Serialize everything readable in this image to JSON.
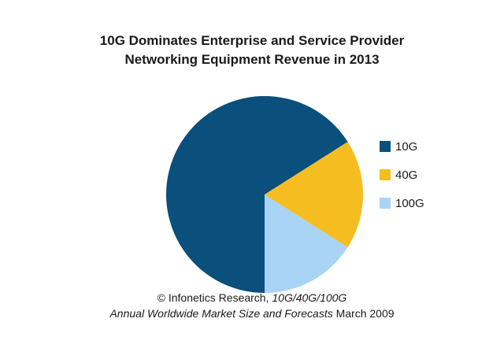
{
  "chart_data": {
    "type": "pie",
    "title_lines": [
      "10G Dominates Enterprise and Service Provider",
      "Networking Equipment Revenue in 2013"
    ],
    "categories": [
      "10G",
      "40G",
      "100G"
    ],
    "values": [
      66,
      18,
      16
    ],
    "colors": [
      "#0b4f7c",
      "#f5bd1f",
      "#a9d4f5"
    ],
    "legend_position": "right"
  },
  "footer": {
    "line1_prefix": "© Infonetics Research, ",
    "line1_italic": "10G/40G/100G",
    "line2_italic": "Annual Worldwide Market Size and Forecasts",
    "line2_suffix": " March 2009"
  }
}
